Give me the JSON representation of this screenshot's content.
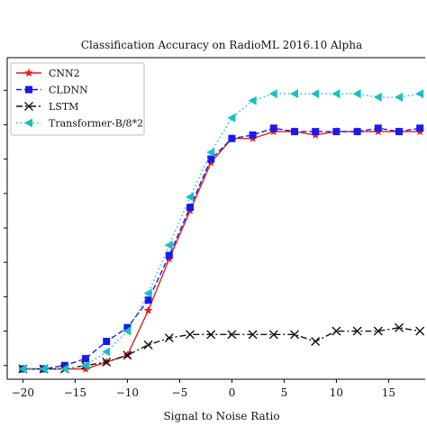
{
  "chart_data": {
    "type": "line",
    "title": "Classification Accuracy on RadioML 2016.10 Alpha",
    "xlabel": "Signal to Noise Ratio",
    "ylabel": "",
    "xlim": [
      -21.5,
      18.5
    ],
    "ylim": [
      0.06,
      0.995
    ],
    "xticks": [
      -20,
      -15,
      -10,
      -5,
      0,
      5,
      10,
      15
    ],
    "x": [
      -20,
      -18,
      -16,
      -14,
      -12,
      -10,
      -8,
      -6,
      -4,
      -2,
      0,
      2,
      4,
      6,
      8,
      10,
      12,
      14,
      16,
      18
    ],
    "grid": false,
    "legend_position": "top-left",
    "series": [
      {
        "name": "CNN2",
        "color": "#e8191c",
        "line_style": "solid",
        "marker": "star",
        "values": [
          0.09,
          0.09,
          0.09,
          0.09,
          0.11,
          0.13,
          0.26,
          0.41,
          0.55,
          0.69,
          0.76,
          0.76,
          0.78,
          0.78,
          0.77,
          0.78,
          0.78,
          0.78,
          0.78,
          0.78
        ]
      },
      {
        "name": "CLDNN",
        "color": "#1a1aee",
        "line_style": "dashed",
        "marker": "square",
        "values": [
          0.09,
          0.09,
          0.1,
          0.12,
          0.17,
          0.21,
          0.29,
          0.42,
          0.56,
          0.7,
          0.76,
          0.77,
          0.79,
          0.78,
          0.78,
          0.78,
          0.78,
          0.79,
          0.78,
          0.79
        ]
      },
      {
        "name": "LSTM",
        "color": "#111111",
        "line_style": "dashdot",
        "marker": "x",
        "values": [
          0.09,
          0.09,
          0.09,
          0.1,
          0.11,
          0.13,
          0.16,
          0.18,
          0.19,
          0.19,
          0.19,
          0.19,
          0.19,
          0.19,
          0.17,
          0.2,
          0.2,
          0.2,
          0.21,
          0.2
        ]
      },
      {
        "name": "Transformer-B/8*2",
        "color": "#17c0c4",
        "line_style": "dotted",
        "marker": "triangle-left",
        "values": [
          0.09,
          0.09,
          0.09,
          0.1,
          0.14,
          0.2,
          0.31,
          0.45,
          0.59,
          0.72,
          0.82,
          0.87,
          0.89,
          0.89,
          0.89,
          0.89,
          0.89,
          0.88,
          0.88,
          0.89
        ]
      }
    ]
  }
}
